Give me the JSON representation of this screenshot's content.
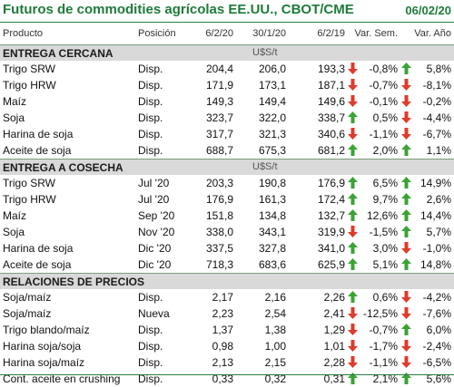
{
  "title": "Futuros de commodities agrícolas EE.UU., CBOT/CME",
  "date": "06/02/20",
  "headers": [
    "Producto",
    "Posición",
    "6/2/20",
    "30/1/20",
    "6/2/19",
    "Var. Sem.",
    "Var. Año"
  ],
  "colors": {
    "title": "#1e7a3b",
    "up": "#3aa335",
    "down": "#e03a2a",
    "section_bg": "#d9d9d9"
  },
  "sections": [
    {
      "name": "ENTREGA CERCANA",
      "unit": "U$S/t",
      "rows": [
        {
          "name": "Trigo SRW",
          "pos": "Disp.",
          "v1": "204,4",
          "v2": "206,0",
          "v3": "193,3",
          "a1": "down",
          "pct": "-0,8%",
          "a2": "up",
          "yr": "5,8%"
        },
        {
          "name": "Trigo HRW",
          "pos": "Disp.",
          "v1": "171,9",
          "v2": "173,1",
          "v3": "187,1",
          "a1": "down",
          "pct": "-0,7%",
          "a2": "down",
          "yr": "-8,1%"
        },
        {
          "name": "Maíz",
          "pos": "Disp.",
          "v1": "149,3",
          "v2": "149,4",
          "v3": "149,6",
          "a1": "down",
          "pct": "-0,1%",
          "a2": "down",
          "yr": "-0,2%"
        },
        {
          "name": "Soja",
          "pos": "Disp.",
          "v1": "323,7",
          "v2": "322,0",
          "v3": "338,7",
          "a1": "up",
          "pct": "0,5%",
          "a2": "down",
          "yr": "-4,4%"
        },
        {
          "name": "Harina de soja",
          "pos": "Disp.",
          "v1": "317,7",
          "v2": "321,3",
          "v3": "340,6",
          "a1": "down",
          "pct": "-1,1%",
          "a2": "down",
          "yr": "-6,7%"
        },
        {
          "name": "Aceite de soja",
          "pos": "Disp.",
          "v1": "688,7",
          "v2": "675,3",
          "v3": "681,2",
          "a1": "up",
          "pct": "2,0%",
          "a2": "up",
          "yr": "1,1%"
        }
      ]
    },
    {
      "name": "ENTREGA A COSECHA",
      "unit": "U$S/t",
      "rows": [
        {
          "name": "Trigo SRW",
          "pos": "Jul '20",
          "v1": "203,3",
          "v2": "190,8",
          "v3": "176,9",
          "a1": "up",
          "pct": "6,5%",
          "a2": "up",
          "yr": "14,9%"
        },
        {
          "name": "Trigo HRW",
          "pos": "Jul '20",
          "v1": "176,9",
          "v2": "161,3",
          "v3": "172,4",
          "a1": "up",
          "pct": "9,7%",
          "a2": "up",
          "yr": "2,6%"
        },
        {
          "name": "Maíz",
          "pos": "Sep '20",
          "v1": "151,8",
          "v2": "134,8",
          "v3": "132,7",
          "a1": "up",
          "pct": "12,6%",
          "a2": "up",
          "yr": "14,4%"
        },
        {
          "name": "Soja",
          "pos": "Nov '20",
          "v1": "338,0",
          "v2": "343,1",
          "v3": "319,9",
          "a1": "down",
          "pct": "-1,5%",
          "a2": "up",
          "yr": "5,7%"
        },
        {
          "name": "Harina de soja",
          "pos": "Dic '20",
          "v1": "337,5",
          "v2": "327,8",
          "v3": "341,0",
          "a1": "up",
          "pct": "3,0%",
          "a2": "down",
          "yr": "-1,0%"
        },
        {
          "name": "Aceite de soja",
          "pos": "Dic '20",
          "v1": "718,3",
          "v2": "683,6",
          "v3": "625,9",
          "a1": "up",
          "pct": "5,1%",
          "a2": "up",
          "yr": "14,8%"
        }
      ]
    },
    {
      "name": "RELACIONES DE PRECIOS",
      "unit": "",
      "rows": [
        {
          "name": "Soja/maíz",
          "pos": "Disp.",
          "v1": "2,17",
          "v2": "2,16",
          "v3": "2,26",
          "a1": "up",
          "pct": "0,6%",
          "a2": "down",
          "yr": "-4,2%"
        },
        {
          "name": "Soja/maíz",
          "pos": "Nueva",
          "v1": "2,23",
          "v2": "2,54",
          "v3": "2,41",
          "a1": "down",
          "pct": "-12,5%",
          "a2": "down",
          "yr": "-7,6%"
        },
        {
          "name": "Trigo blando/maíz",
          "pos": "Disp.",
          "v1": "1,37",
          "v2": "1,38",
          "v3": "1,29",
          "a1": "down",
          "pct": "-0,7%",
          "a2": "up",
          "yr": "6,0%"
        },
        {
          "name": "Harina soja/soja",
          "pos": "Disp.",
          "v1": "0,98",
          "v2": "1,00",
          "v3": "1,01",
          "a1": "down",
          "pct": "-1,7%",
          "a2": "down",
          "yr": "-2,4%"
        },
        {
          "name": "Harina soja/maíz",
          "pos": "Disp.",
          "v1": "2,13",
          "v2": "2,15",
          "v3": "2,28",
          "a1": "down",
          "pct": "-1,1%",
          "a2": "down",
          "yr": "-6,5%"
        },
        {
          "name": "Cont. aceite en crushing",
          "pos": "Disp.",
          "v1": "0,33",
          "v2": "0,32",
          "v3": "0,31",
          "a1": "up",
          "pct": "2,1%",
          "a2": "up",
          "yr": "5,6%"
        }
      ]
    }
  ]
}
